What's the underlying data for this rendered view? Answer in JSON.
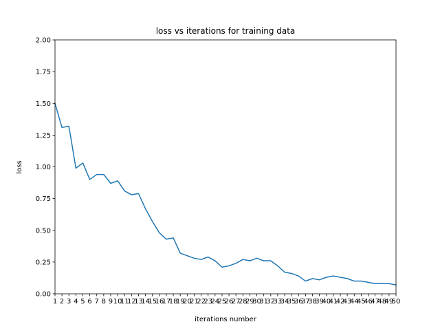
{
  "chart_data": {
    "type": "line",
    "title": "loss vs iterations for training data",
    "xlabel": "iterations number",
    "ylabel": "loss",
    "x": [
      1,
      2,
      3,
      4,
      5,
      6,
      7,
      8,
      9,
      10,
      11,
      12,
      13,
      14,
      15,
      16,
      17,
      18,
      19,
      20,
      21,
      22,
      23,
      24,
      25,
      26,
      27,
      28,
      29,
      30,
      31,
      32,
      33,
      34,
      35,
      36,
      37,
      38,
      39,
      40,
      41,
      42,
      43,
      44,
      45,
      46,
      47,
      48,
      49,
      50
    ],
    "x_tick_labels": [
      "1",
      "2",
      "3",
      "4",
      "5",
      "6",
      "7",
      "8",
      "9",
      "10",
      "11",
      "12",
      "13",
      "14",
      "15",
      "16",
      "17",
      "18",
      "19",
      "20",
      "21",
      "22",
      "23",
      "24",
      "25",
      "26",
      "27",
      "28",
      "29",
      "30",
      "31",
      "32",
      "33",
      "34",
      "35",
      "36",
      "37",
      "38",
      "39",
      "40",
      "41",
      "42",
      "43",
      "44",
      "45",
      "46",
      "47",
      "48",
      "49",
      "50"
    ],
    "xlim": [
      1,
      50
    ],
    "ylim": [
      0,
      2.0
    ],
    "y_ticks": [
      0.0,
      0.25,
      0.5,
      0.75,
      1.0,
      1.25,
      1.5,
      1.75,
      2.0
    ],
    "y_tick_labels": [
      "0.00",
      "0.25",
      "0.50",
      "0.75",
      "1.00",
      "1.25",
      "1.50",
      "1.75",
      "2.00"
    ],
    "grid": false,
    "series": [
      {
        "color": "#1f77b4",
        "values": [
          1.5,
          1.31,
          1.32,
          0.99,
          1.03,
          0.9,
          0.94,
          0.94,
          0.87,
          0.89,
          0.81,
          0.78,
          0.79,
          0.67,
          0.57,
          0.48,
          0.43,
          0.44,
          0.32,
          0.3,
          0.28,
          0.27,
          0.29,
          0.26,
          0.21,
          0.22,
          0.24,
          0.27,
          0.26,
          0.28,
          0.26,
          0.26,
          0.22,
          0.17,
          0.16,
          0.14,
          0.1,
          0.12,
          0.11,
          0.13,
          0.14,
          0.13,
          0.12,
          0.1,
          0.1,
          0.09,
          0.08,
          0.08,
          0.08,
          0.07
        ]
      }
    ]
  }
}
